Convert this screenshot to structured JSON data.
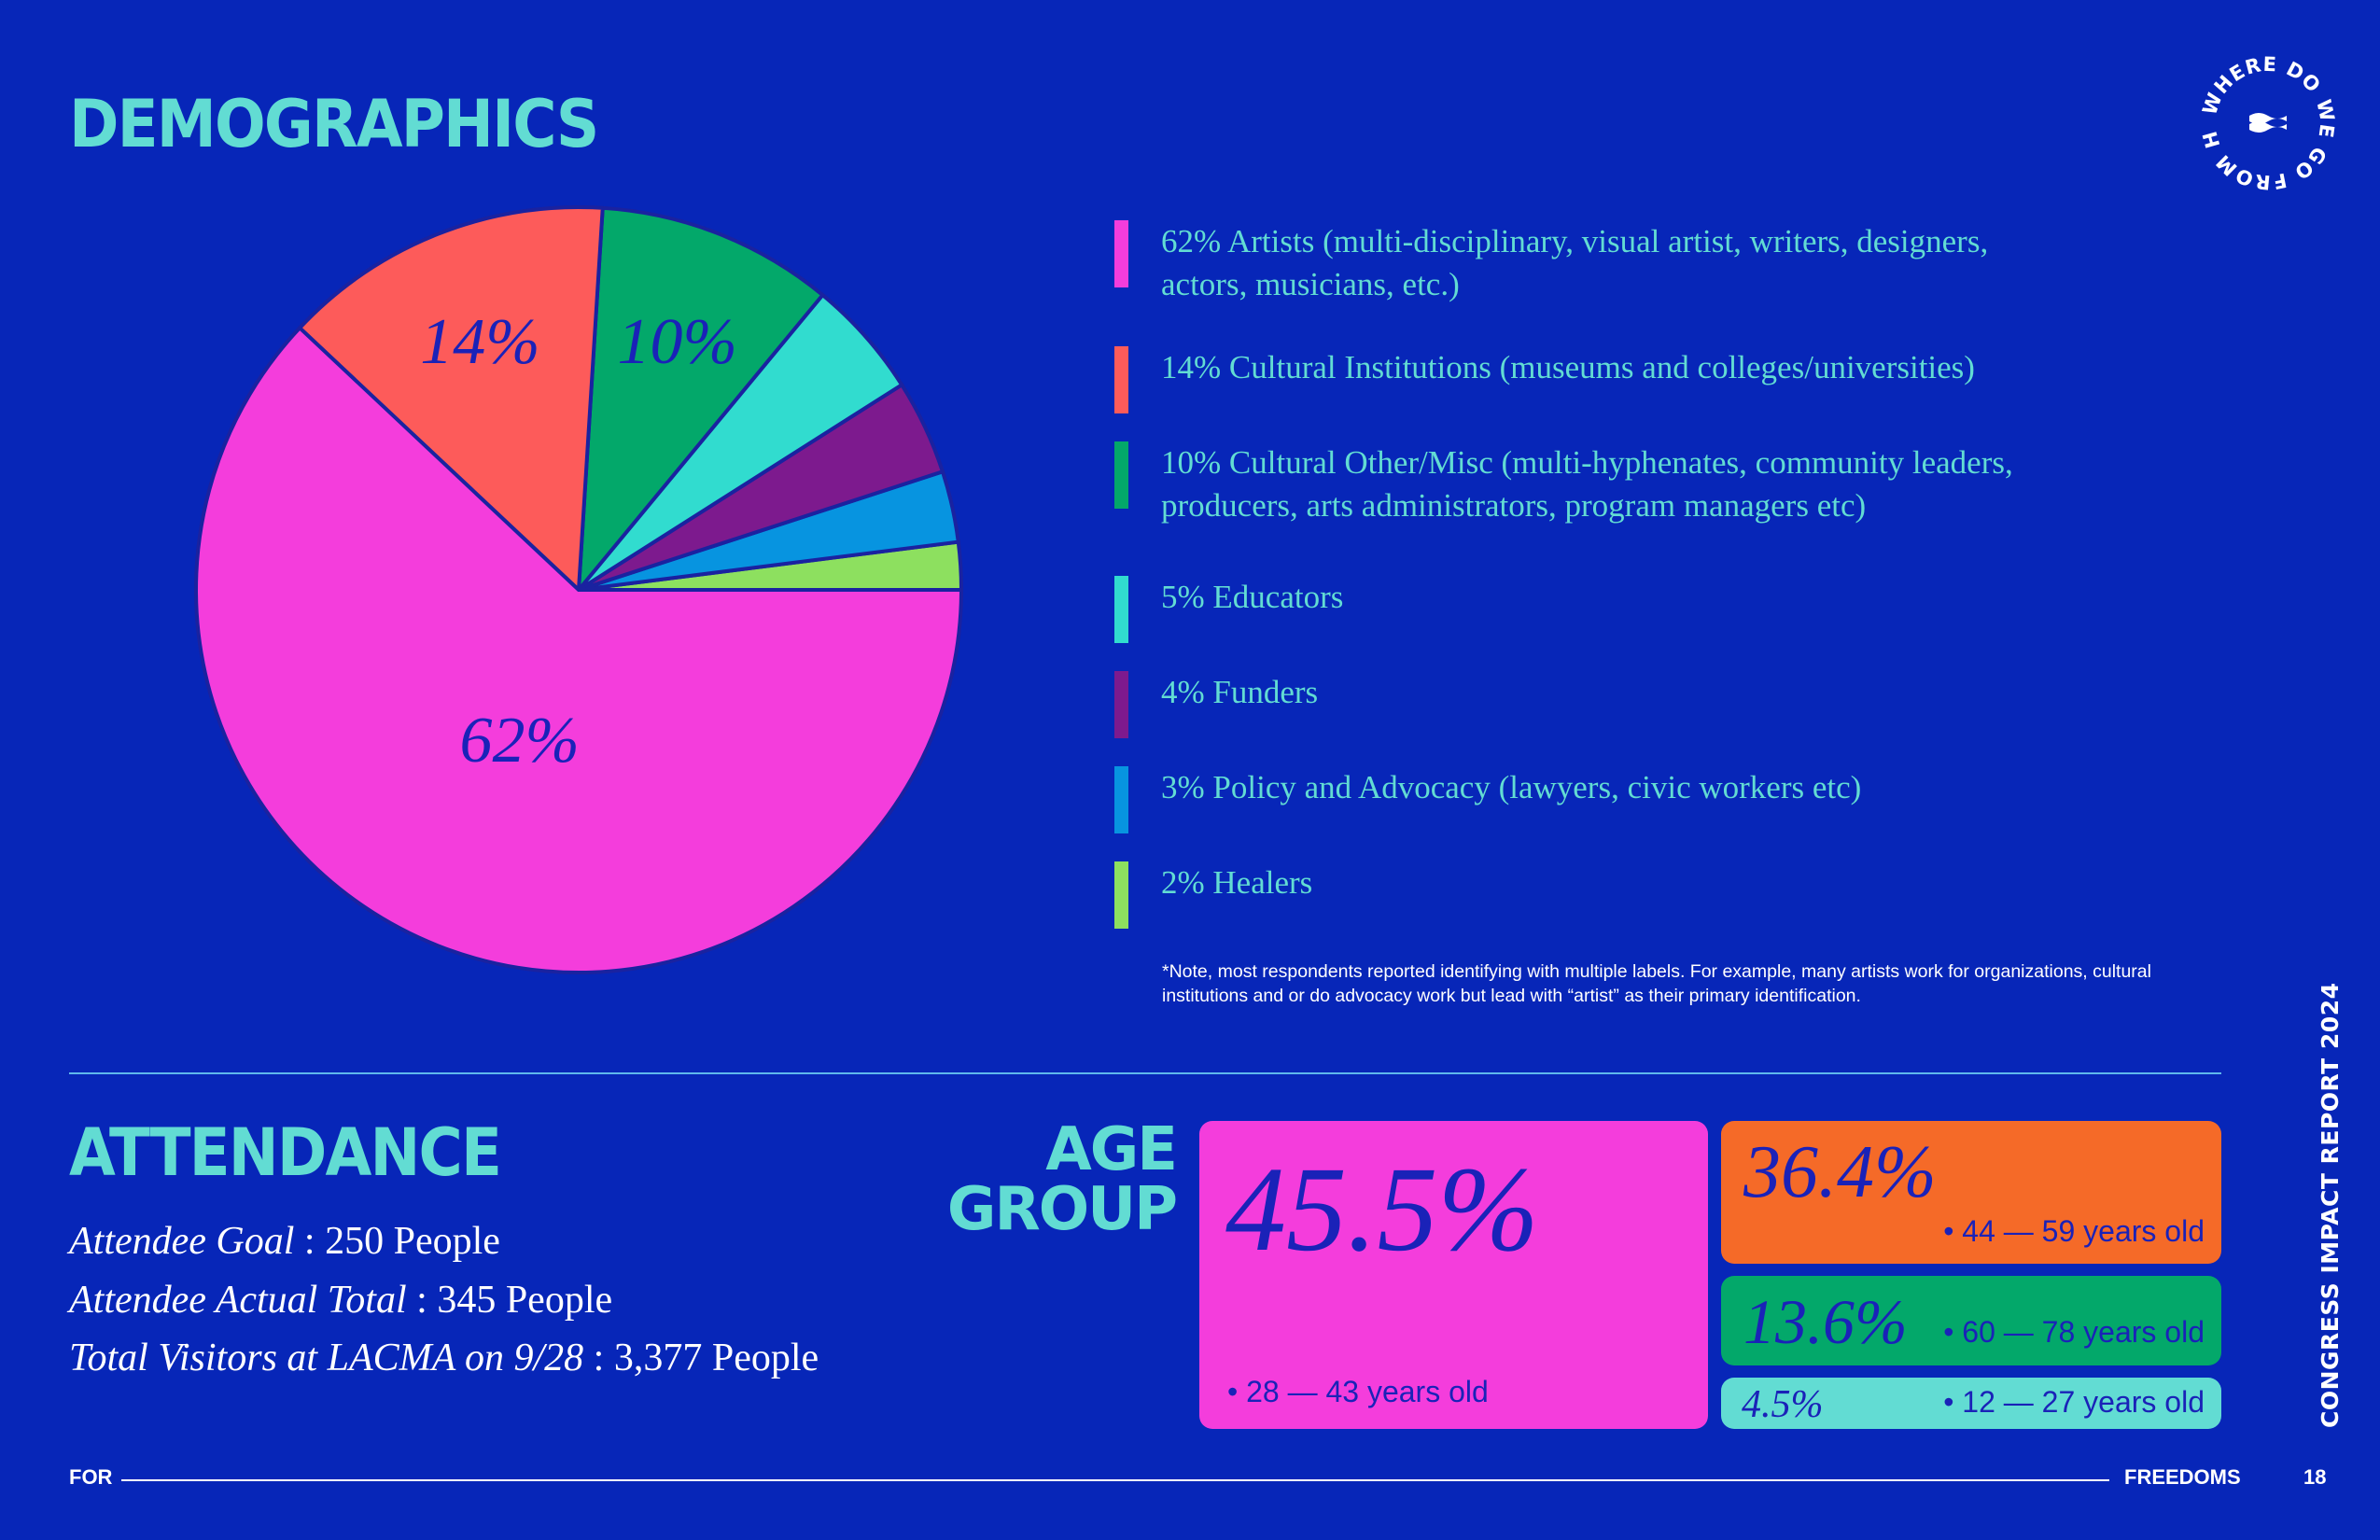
{
  "demographics": {
    "title": "DEMOGRAPHICS",
    "note": "*Note, most respondents reported identifying with multiple labels. For example, many artists work for organizations, cultural institutions and or do advocacy work but lead with “artist” as their primary identification."
  },
  "chart_data": {
    "type": "pie",
    "categories": [
      "Artists",
      "Cultural Institutions",
      "Cultural Other/Misc",
      "Educators",
      "Funders",
      "Policy and Advocacy",
      "Healers"
    ],
    "values": [
      62,
      14,
      10,
      5,
      4,
      3,
      2
    ],
    "colors": [
      "#f43ddc",
      "#fd5b5a",
      "#03a86a",
      "#31dccf",
      "#7d1a8e",
      "#0794e0",
      "#8de05f"
    ],
    "slice_labels": [
      "62%",
      "14%",
      "10%",
      "",
      "",
      "",
      ""
    ],
    "legend": [
      "62% Artists (multi-disciplinary, visual artist, writers, designers, actors, musicians, etc.)",
      "14% Cultural Institutions (museums and colleges/universities)",
      "10% Cultural Other/Misc (multi-hyphenates, community leaders, producers, arts administrators, program managers etc)",
      "5% Educators",
      "4% Funders",
      "3% Policy and Advocacy (lawyers, civic workers etc)",
      "2% Healers"
    ],
    "legend_position": "right"
  },
  "attendance": {
    "title": "ATTENDANCE",
    "lines": [
      {
        "label": "Attendee Goal",
        "value": "250 People"
      },
      {
        "label": "Attendee Actual Total",
        "value": "345 People"
      },
      {
        "label": "Total Visitors at LACMA on 9/28",
        "value": "3,377 People"
      }
    ]
  },
  "age_group": {
    "title_line1": "AGE",
    "title_line2": "GROUP",
    "groups": [
      {
        "percent": "45.5%",
        "range": "• 28 — 43 years old",
        "color": "#f43ddc"
      },
      {
        "percent": "36.4%",
        "range": "• 44 — 59 years old",
        "color": "#f56a28"
      },
      {
        "percent": "13.6%",
        "range": "• 60 — 78 years old",
        "color": "#03a86a"
      },
      {
        "percent": "4.5%",
        "range": "• 12 — 27 years old",
        "color": "#62dcd3"
      }
    ]
  },
  "footer": {
    "left": "FOR",
    "right": "FREEDOMS",
    "page": "18"
  },
  "side_text": "CONGRESS IMPACT REPORT 2024",
  "logo": {
    "text": "WHERE DO WE GO FROM HERE?",
    "icon": "flag-icon"
  }
}
